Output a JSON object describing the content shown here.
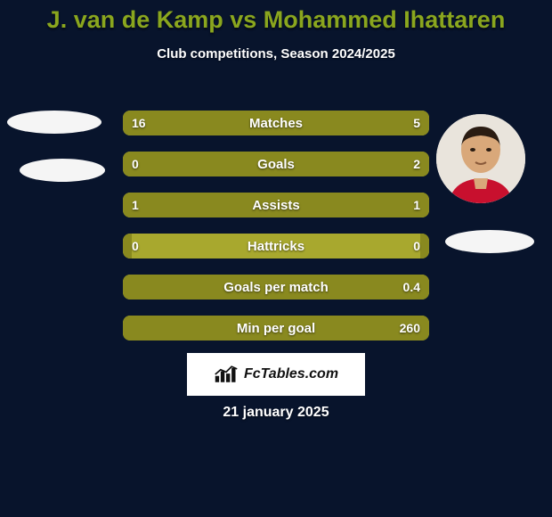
{
  "background_color": "#08142c",
  "title": {
    "text": "J. van de Kamp vs Mohammed Ihattaren",
    "color": "#8aa61e",
    "fontsize": 27
  },
  "subtitle": {
    "text": "Club competitions, Season 2024/2025",
    "color": "#ffffff",
    "fontsize": 15
  },
  "left_player_has_photo": false,
  "right_player_has_photo": true,
  "bar_track_color": "#a8a82e",
  "bar_left_color": "#89891f",
  "bar_right_color": "#89891f",
  "bar_text_color": "#ffffff",
  "bar_label_fontsize": 15,
  "bar_value_fontsize": 14,
  "stats": [
    {
      "label": "Matches",
      "left_val": "16",
      "right_val": "5",
      "left_pct": 72,
      "right_pct": 28
    },
    {
      "label": "Goals",
      "left_val": "0",
      "right_val": "2",
      "left_pct": 3,
      "right_pct": 97
    },
    {
      "label": "Assists",
      "left_val": "1",
      "right_val": "1",
      "left_pct": 50,
      "right_pct": 50
    },
    {
      "label": "Hattricks",
      "left_val": "0",
      "right_val": "0",
      "left_pct": 3,
      "right_pct": 3
    },
    {
      "label": "Goals per match",
      "left_val": "",
      "right_val": "0.4",
      "left_pct": 3,
      "right_pct": 97
    },
    {
      "label": "Min per goal",
      "left_val": "",
      "right_val": "260",
      "left_pct": 3,
      "right_pct": 97
    }
  ],
  "brand": {
    "text": "FcTables.com",
    "fontsize": 16
  },
  "date": {
    "text": "21 january 2025",
    "color": "#ffffff",
    "fontsize": 16
  }
}
